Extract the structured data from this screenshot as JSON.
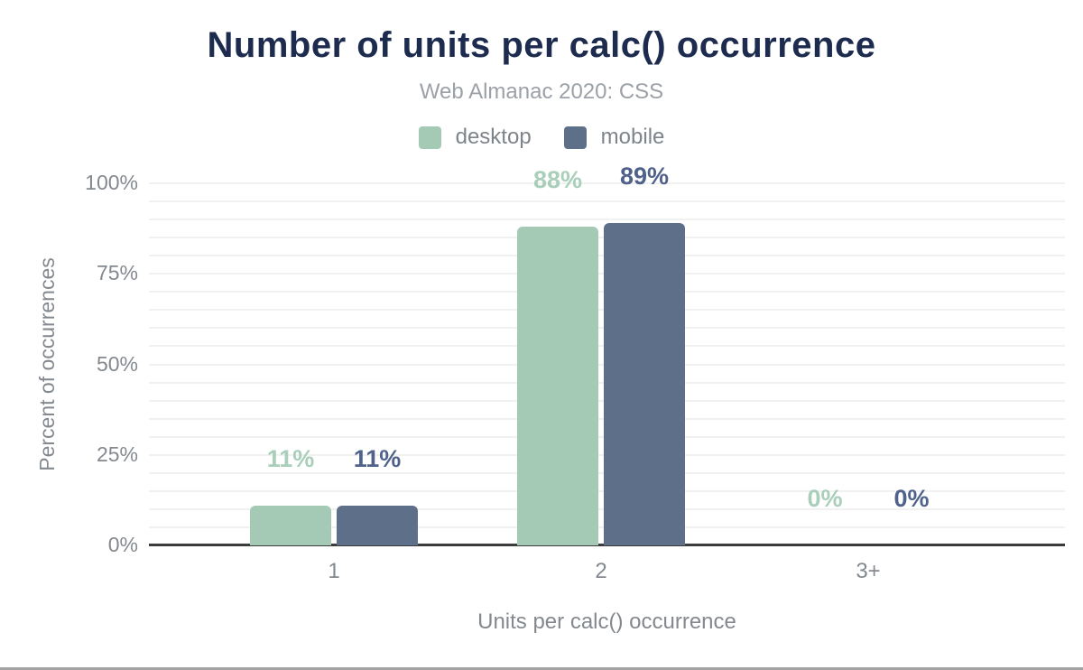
{
  "header": {
    "title": "Number of units per calc() occurrence",
    "subtitle": "Web Almanac 2020: CSS"
  },
  "colors": {
    "title": "#1d2c4e",
    "subtitle_text": "#9ca1a7",
    "axis_text": "#84898f",
    "gridline": "#f1f1f2",
    "baseline": "#3b3b3b",
    "desktop_bar": "#a4cab5",
    "desktop_label": "#a9ceba",
    "mobile_bar": "#5e7089",
    "mobile_label": "#50628b"
  },
  "chart_data": {
    "type": "bar",
    "title": "Number of units per calc() occurrence",
    "subtitle": "Web Almanac 2020: CSS",
    "categories": [
      "1",
      "2",
      "3+"
    ],
    "series": [
      {
        "name": "desktop",
        "color": "#a4cab5",
        "label_color": "#a9ceba",
        "values": [
          11,
          88,
          0
        ],
        "value_labels": [
          "11%",
          "88%",
          "0%"
        ]
      },
      {
        "name": "mobile",
        "color": "#5e7089",
        "label_color": "#50628b",
        "values": [
          11,
          89,
          0
        ],
        "value_labels": [
          "11%",
          "89%",
          "0%"
        ]
      }
    ],
    "value_suffix": "%",
    "xlabel": "Units per calc() occurrence",
    "ylabel": "Percent of occurrences",
    "ylim": [
      0,
      100
    ],
    "yticks": [
      0,
      25,
      50,
      75,
      100
    ],
    "ytick_labels": [
      "0%",
      "25%",
      "50%",
      "75%",
      "100%"
    ],
    "minor_grid_step_pct": 5,
    "grid": true,
    "legend_position": "top"
  }
}
